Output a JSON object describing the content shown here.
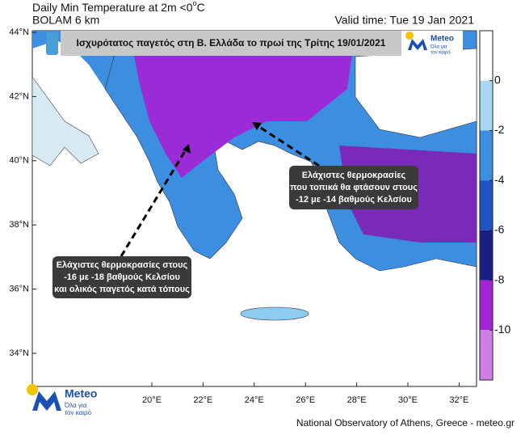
{
  "header": {
    "title_main": "Daily Min Temperature at 2m <0",
    "title_sup": "o",
    "title_unit": "C",
    "model": "BOLAM 6 km",
    "valid_time": "Valid time: Tue 19 Jan 2021"
  },
  "banner": {
    "text": "Ισχυρότατος παγετός στη Β. Ελλάδα το πρωί της Τρίτης 19/01/2021",
    "logo": "Meteo",
    "logo_tagline_1": "Όλα για",
    "logo_tagline_2": "τον καιρό"
  },
  "annotations": [
    {
      "lines": [
        "Ελάχιστες θερμοκρασίες",
        "που τοπικά θα φτάσουν στους",
        "-12 με -14 βαθμούς Κελσίου"
      ]
    },
    {
      "lines": [
        "Ελάχιστες θερμοκρασίες στους",
        "-16 με -18 βαθμούς Κελσίου",
        "και ολικός παγετός κατά τόπους"
      ]
    }
  ],
  "map": {
    "lat_ticks": [
      {
        "value": 44,
        "label": "44°N"
      },
      {
        "value": 42,
        "label": "42°N"
      },
      {
        "value": 40,
        "label": "40°N"
      },
      {
        "value": 38,
        "label": "38°N"
      },
      {
        "value": 36,
        "label": "36°N"
      },
      {
        "value": 34,
        "label": "34°N"
      }
    ],
    "lon_ticks": [
      {
        "value": 20,
        "label": "20°E"
      },
      {
        "value": 22,
        "label": "22°E"
      },
      {
        "value": 24,
        "label": "24°E"
      },
      {
        "value": 26,
        "label": "26°E"
      },
      {
        "value": 28,
        "label": "28°E"
      },
      {
        "value": 30,
        "label": "30°E"
      },
      {
        "value": 32,
        "label": "32°E"
      }
    ]
  },
  "colorbar": {
    "lim": [
      2,
      -12
    ],
    "ticks": [
      0,
      -2,
      -4,
      -6,
      -8,
      -10
    ],
    "colors": [
      "#ffffff",
      "#a9d8f3",
      "#3c8fe0",
      "#1f52c4",
      "#1a1f86",
      "#a224d6",
      "#cf7ee6"
    ]
  },
  "footer_logo": {
    "name": "Meteo",
    "tagline_1": "Όλα για",
    "tagline_2": "τον καιρό"
  },
  "credit": "National Observatory of Athens, Greece - meteo.gr"
}
